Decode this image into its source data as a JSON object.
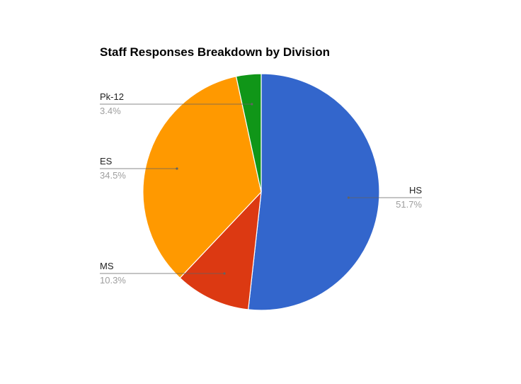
{
  "chart_data": {
    "type": "pie",
    "title": "Staff Responses Breakdown by Division",
    "legend": "labeled",
    "slices": [
      {
        "label": "HS",
        "value": 51.7,
        "percent_label": "51.7%",
        "color": "#3366cc"
      },
      {
        "label": "MS",
        "value": 10.3,
        "percent_label": "10.3%",
        "color": "#dc3912"
      },
      {
        "label": "ES",
        "value": 34.5,
        "percent_label": "34.5%",
        "color": "#ff9900"
      },
      {
        "label": "Pk-12",
        "value": 3.4,
        "percent_label": "3.4%",
        "color": "#109618"
      }
    ]
  }
}
